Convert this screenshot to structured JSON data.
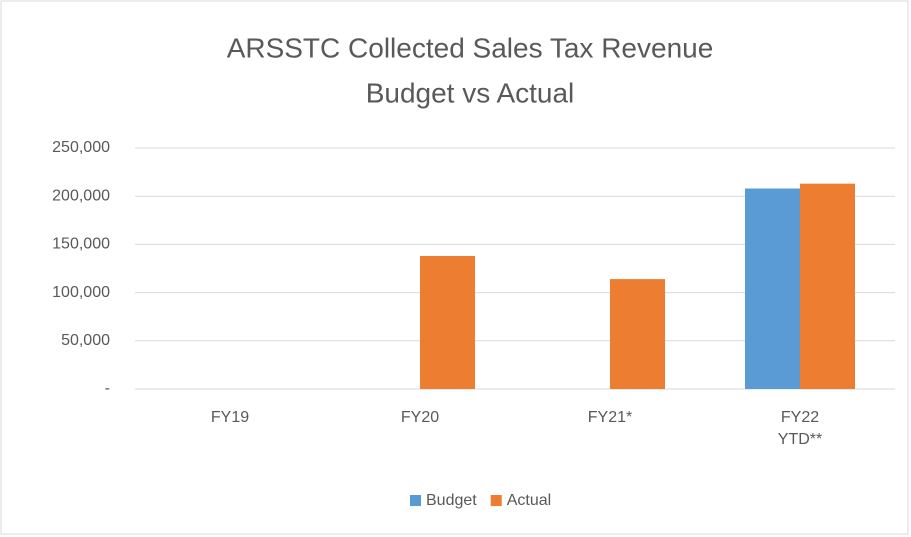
{
  "chart_data": {
    "type": "bar",
    "title": "ARSSTC Collected Sales Tax Revenue",
    "subtitle": "Budget vs Actual",
    "categories": [
      "FY19",
      "FY20",
      "FY21*",
      "FY22 YTD**"
    ],
    "series": [
      {
        "name": "Budget",
        "color": "#5b9bd5",
        "values": [
          null,
          null,
          null,
          208000
        ]
      },
      {
        "name": "Actual",
        "color": "#ed7d31",
        "values": [
          null,
          138000,
          114000,
          213000
        ]
      }
    ],
    "ylim": [
      0,
      250000
    ],
    "yticks": [
      {
        "value": 0,
        "label": "-"
      },
      {
        "value": 50000,
        "label": "50,000"
      },
      {
        "value": 100000,
        "label": "100,000"
      },
      {
        "value": 150000,
        "label": "150,000"
      },
      {
        "value": 200000,
        "label": "200,000"
      },
      {
        "value": 250000,
        "label": "250,000"
      }
    ],
    "grid": true,
    "legend": "bottom"
  }
}
